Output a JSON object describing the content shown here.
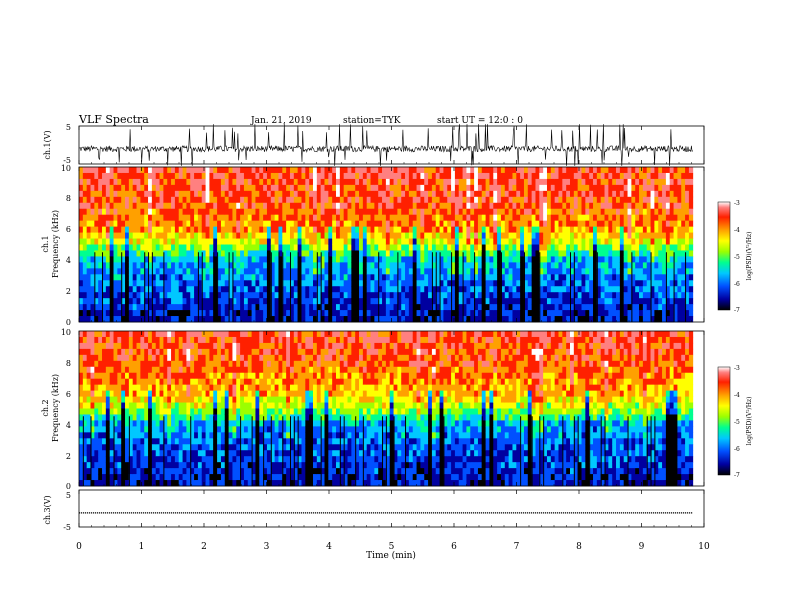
{
  "header": {
    "title": "VLF Spectra",
    "date": "Jan. 21, 2019",
    "station": "station=TYK",
    "start_ut": "start UT =  12:0 : 0"
  },
  "colorbar": {
    "label": "log(PSD)(V²/Hz)",
    "ticks": [
      "-3",
      "-4",
      "-5",
      "-6",
      "-7"
    ],
    "range": [
      -7,
      -3
    ],
    "colors": [
      "#000000",
      "#0000a0",
      "#0050ff",
      "#00c8ff",
      "#00ff90",
      "#9bff00",
      "#ffff00",
      "#ffa000",
      "#ff2000",
      "#ff8080",
      "#ffffff"
    ]
  },
  "chart_data": [
    {
      "type": "line",
      "panel": "ch1-waveform",
      "ylabel": "ch.1(V)",
      "ylim": [
        -5,
        5
      ],
      "yticks": [
        "5",
        "-5"
      ],
      "x_range_min": [
        0,
        9.82
      ],
      "note_values": "noisy waveform with offset near -1 V and frequent spikes to ±5 V"
    },
    {
      "type": "heatmap",
      "panel": "ch1-spectrogram",
      "ylabel_top": "ch.1",
      "ylabel": "Frequency (kHz)",
      "ylim": [
        0,
        10
      ],
      "yticks": [
        "0",
        "2",
        "4",
        "6",
        "8",
        "10"
      ],
      "x_range_min": [
        0,
        9.82
      ],
      "log_psd_by_frequency_khz": [
        {
          "f": 0.5,
          "v": -6.5
        },
        {
          "f": 2,
          "v": -6.2
        },
        {
          "f": 4,
          "v": -5.8
        },
        {
          "f": 5,
          "v": -4.8
        },
        {
          "f": 6,
          "v": -4.2
        },
        {
          "f": 8,
          "v": -3.8
        },
        {
          "f": 10,
          "v": -3.7
        }
      ]
    },
    {
      "type": "heatmap",
      "panel": "ch2-spectrogram",
      "ylabel_top": "ch.2",
      "ylabel": "Frequency (kHz)",
      "ylim": [
        0,
        10
      ],
      "yticks": [
        "0",
        "2",
        "4",
        "6",
        "8",
        "10"
      ],
      "x_range_min": [
        0,
        9.82
      ],
      "log_psd_by_frequency_khz": [
        {
          "f": 0.5,
          "v": -6.5
        },
        {
          "f": 2,
          "v": -6.3
        },
        {
          "f": 4,
          "v": -5.9
        },
        {
          "f": 5,
          "v": -4.9
        },
        {
          "f": 6,
          "v": -4.3
        },
        {
          "f": 8,
          "v": -3.9
        },
        {
          "f": 10,
          "v": -3.7
        }
      ]
    },
    {
      "type": "line",
      "panel": "ch3-waveform",
      "ylabel": "ch.3(V)",
      "ylim": [
        -5,
        5
      ],
      "yticks": [
        "5",
        "-5"
      ],
      "x_range_min": [
        0,
        9.82
      ],
      "constant_value": -1.2
    }
  ],
  "xaxis": {
    "label": "Time (min)",
    "ticks": [
      "0",
      "1",
      "2",
      "3",
      "4",
      "5",
      "6",
      "7",
      "8",
      "9",
      "10"
    ],
    "range": [
      0,
      10
    ]
  }
}
